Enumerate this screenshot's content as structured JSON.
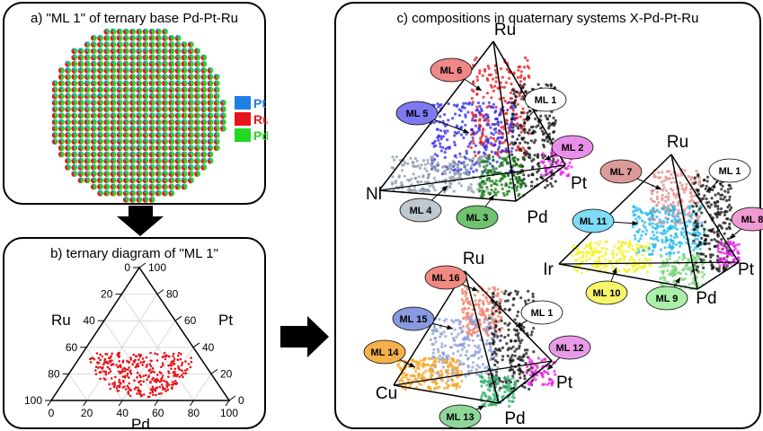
{
  "panel_a": {
    "title": "a) \"ML 1\" of ternary base Pd-Pt-Ru",
    "legend": [
      {
        "label": "Pt",
        "color": "#1e7fe6"
      },
      {
        "label": "Ru",
        "color": "#e8141b"
      },
      {
        "label": "Pd",
        "color": "#22d822"
      }
    ]
  },
  "panel_b": {
    "title": "b) ternary diagram of \"ML 1\"",
    "axis_labels": {
      "left": "Ru",
      "right": "Pt",
      "bottom": "Pd"
    },
    "ticks": [
      "0",
      "20",
      "40",
      "60",
      "80",
      "100"
    ],
    "point_color": "#e8141b"
  },
  "panel_c": {
    "title": "c) compositions in quaternary systems X-Pd-Pt-Ru",
    "systems": [
      {
        "apex": {
          "top": "Ru",
          "left": "Ni",
          "front": "Pd",
          "right": "Pt"
        },
        "labels": [
          "ML 6",
          "ML 5",
          "ML 1",
          "ML 2",
          "ML 4",
          "ML 3"
        ]
      },
      {
        "apex": {
          "top": "Ru",
          "left": "Ir",
          "front": "Pd",
          "right": "Pt"
        },
        "labels": [
          "ML 7",
          "ML 1",
          "ML 11",
          "ML 8",
          "ML 10",
          "ML 9"
        ]
      },
      {
        "apex": {
          "top": "Ru",
          "left": "Cu",
          "front": "Pd",
          "right": "Pt"
        },
        "labels": [
          "ML 16",
          "ML 15",
          "ML 1",
          "ML 14",
          "ML 12",
          "ML 13"
        ]
      }
    ]
  }
}
